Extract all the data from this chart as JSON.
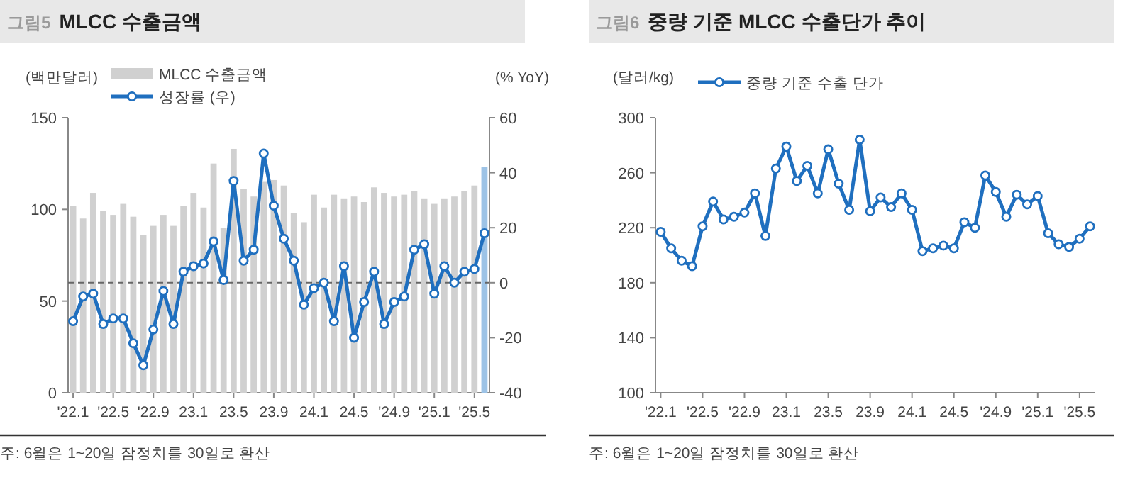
{
  "chart_data": [
    {
      "type": "bar",
      "title": "그림5 MLCC 수출금액",
      "ylabel": "(백만달러)",
      "y2label": "(% YoY)",
      "categories": [
        "'22.1",
        null,
        null,
        null,
        "'22.5",
        null,
        null,
        null,
        "'22.9",
        null,
        null,
        null,
        "23.1",
        null,
        null,
        null,
        "23.5",
        null,
        null,
        null,
        "23.9",
        null,
        null,
        null,
        "24.1",
        null,
        null,
        null,
        "24.5",
        null,
        null,
        null,
        "'24.9",
        null,
        null,
        null,
        "'25.1",
        null,
        null,
        null,
        "'25.5",
        null
      ],
      "series": [
        {
          "name": "MLCC 수출금액",
          "color": "#d0d0d0",
          "colors": [
            "#d0d0d0",
            "#d0d0d0",
            "#d0d0d0",
            "#d0d0d0",
            "#d0d0d0",
            "#d0d0d0",
            "#d0d0d0",
            "#d0d0d0",
            "#d0d0d0",
            "#d0d0d0",
            "#d0d0d0",
            "#d0d0d0",
            "#d0d0d0",
            "#d0d0d0",
            "#d0d0d0",
            "#d0d0d0",
            "#d0d0d0",
            "#d0d0d0",
            "#d0d0d0",
            "#d0d0d0",
            "#d0d0d0",
            "#d0d0d0",
            "#d0d0d0",
            "#d0d0d0",
            "#d0d0d0",
            "#d0d0d0",
            "#d0d0d0",
            "#d0d0d0",
            "#d0d0d0",
            "#d0d0d0",
            "#d0d0d0",
            "#d0d0d0",
            "#d0d0d0",
            "#d0d0d0",
            "#d0d0d0",
            "#d0d0d0",
            "#d0d0d0",
            "#d0d0d0",
            "#d0d0d0",
            "#d0d0d0",
            "#d0d0d0",
            "#9dc3e6"
          ],
          "values": [
            102,
            95,
            109,
            99,
            97,
            103,
            96,
            86,
            91,
            97,
            91,
            102,
            109,
            101,
            125,
            90,
            133,
            111,
            107,
            115,
            116,
            113,
            98,
            93,
            108,
            101,
            108,
            106,
            107,
            104,
            112,
            109,
            107,
            108,
            110,
            106,
            103,
            106,
            107,
            110,
            113,
            123
          ]
        },
        {
          "name": "성장률 (우)",
          "type": "line",
          "axis": "y2",
          "color": "#1f6fbf",
          "values": [
            -14,
            -5,
            -4,
            -15,
            -13,
            -13,
            -22,
            -30,
            -17,
            -3,
            -15,
            4,
            6,
            7,
            15,
            1,
            37,
            8,
            12,
            47,
            28,
            16,
            8,
            -8,
            -2,
            0,
            -14,
            6,
            -20,
            -7,
            4,
            -15,
            -7,
            -5,
            12,
            14,
            -4,
            6,
            0,
            4,
            5,
            18
          ]
        }
      ],
      "ylim": [
        0,
        150
      ],
      "yticks": [
        0,
        50,
        100,
        150
      ],
      "y2lim": [
        -40,
        60
      ],
      "y2ticks": [
        -40,
        -20,
        0,
        20,
        40,
        60
      ],
      "ref_lines": [
        {
          "axis": "y2",
          "value": 0,
          "color": "#666666",
          "line_style": "dashed"
        }
      ],
      "marker": "circle",
      "legend": "top left",
      "grid": false,
      "annotations": [
        "주: 6월은 1~20일 잠정치를 30일로 환산"
      ]
    },
    {
      "type": "line",
      "title": "그림6 중량 기준 MLCC 수출단가 추이",
      "ylabel": "(달러/kg)",
      "categories": [
        "'22.1",
        null,
        null,
        null,
        "'22.5",
        null,
        null,
        null,
        "'22.9",
        null,
        null,
        null,
        "23.1",
        null,
        null,
        null,
        "23.5",
        null,
        null,
        null,
        "23.9",
        null,
        null,
        null,
        "24.1",
        null,
        null,
        null,
        "24.5",
        null,
        null,
        null,
        "'24.9",
        null,
        null,
        null,
        "'25.1",
        null,
        null,
        null,
        "'25.5",
        null
      ],
      "series": [
        {
          "name": "중량 기준 수출 단가",
          "color": "#1f6fbf",
          "values": [
            217,
            205,
            196,
            192,
            221,
            239,
            226,
            228,
            231,
            245,
            214,
            263,
            279,
            254,
            265,
            245,
            277,
            252,
            233,
            284,
            232,
            242,
            235,
            245,
            233,
            203,
            205,
            207,
            205,
            224,
            220,
            258,
            246,
            228,
            244,
            237,
            243,
            216,
            208,
            206,
            212,
            221
          ]
        }
      ],
      "ylim": [
        100,
        300
      ],
      "yticks": [
        100,
        140,
        180,
        220,
        260,
        300
      ],
      "marker": "circle",
      "legend": "top left",
      "grid": false,
      "annotations": [
        "주: 6월은 1~20일 잠정치를 30일로 환산"
      ]
    }
  ]
}
